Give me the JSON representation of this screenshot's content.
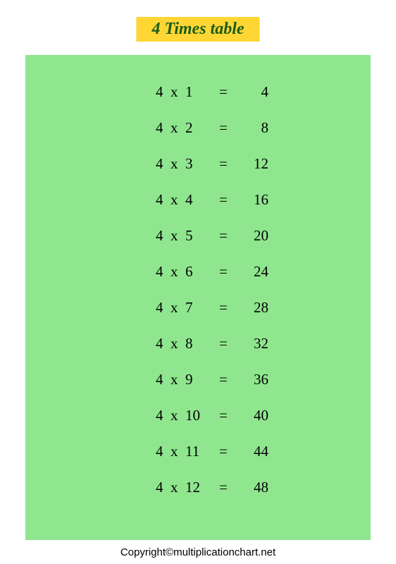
{
  "title": "4 Times table",
  "colors": {
    "title_bg": "#ffd633",
    "title_fg": "#1a5c1a",
    "panel_bg": "#8fe68f",
    "page_bg": "#ffffff",
    "text": "#000000"
  },
  "typography": {
    "title_font": "Brush Script MT, cursive",
    "title_fontsize": 24,
    "row_font": "Times New Roman, serif",
    "row_fontsize": 21,
    "copyright_font": "Arial, sans-serif",
    "copyright_fontsize": 15
  },
  "table": {
    "multiplicand": 4,
    "rows": [
      {
        "lhs": "4  x  1",
        "eq": "=",
        "rhs": "4"
      },
      {
        "lhs": "4  x  2",
        "eq": "=",
        "rhs": "8"
      },
      {
        "lhs": "4  x  3",
        "eq": "=",
        "rhs": "12"
      },
      {
        "lhs": "4  x  4",
        "eq": "=",
        "rhs": "16"
      },
      {
        "lhs": "4  x  5",
        "eq": "=",
        "rhs": "20"
      },
      {
        "lhs": "4  x  6",
        "eq": "=",
        "rhs": "24"
      },
      {
        "lhs": "4  x  7",
        "eq": "=",
        "rhs": "28"
      },
      {
        "lhs": "4  x  8",
        "eq": "=",
        "rhs": "32"
      },
      {
        "lhs": "4  x  9",
        "eq": "=",
        "rhs": "36"
      },
      {
        "lhs": "4  x  10",
        "eq": "=",
        "rhs": "40"
      },
      {
        "lhs": "4  x  11",
        "eq": "=",
        "rhs": "44"
      },
      {
        "lhs": "4  x  12",
        "eq": "=",
        "rhs": "48"
      }
    ]
  },
  "copyright": "Copyright©multiplicationchart.net"
}
